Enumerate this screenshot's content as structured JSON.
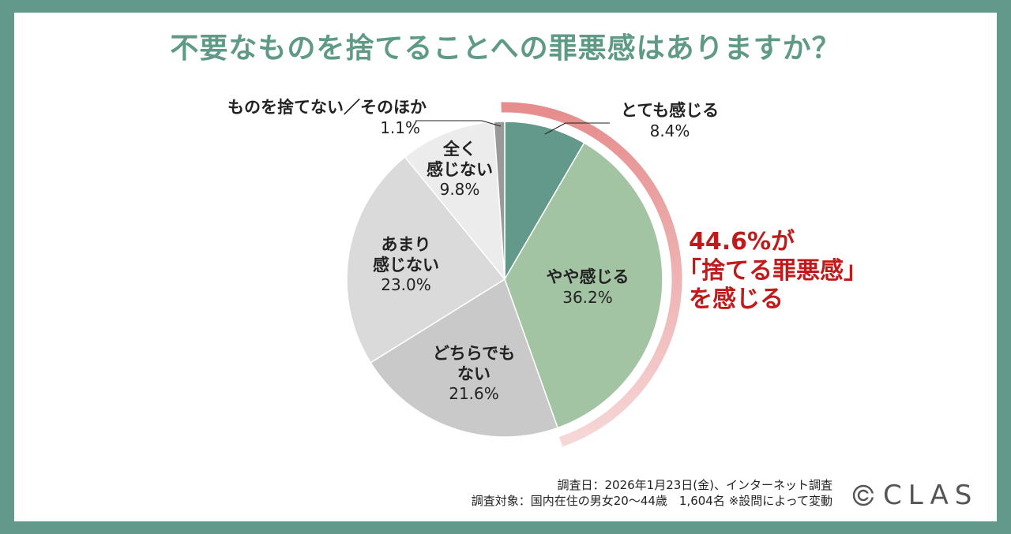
{
  "title": "不要なものを捨てることへの罪悪感はありますか？",
  "chart_data": {
    "type": "pie",
    "title": "不要なものを捨てることへの罪悪感はありますか？",
    "slices": [
      {
        "label": "とても感じる",
        "value": 8.4,
        "pct": "8.4%",
        "color": "#62998a"
      },
      {
        "label": "やや感じる",
        "value": 36.2,
        "pct": "36.2%",
        "color": "#a3c4a3"
      },
      {
        "label": "どちらでもない",
        "value": 21.6,
        "pct": "21.6%",
        "color": "#c9c9c9"
      },
      {
        "label": "あまり感じない",
        "value": 23.0,
        "pct": "23.0%",
        "color": "#dadada"
      },
      {
        "label": "全く感じない",
        "value": 9.8,
        "pct": "9.8%",
        "color": "#ececec"
      },
      {
        "label": "ものを捨てない／そのほか",
        "value": 1.1,
        "pct": "1.1%",
        "color": "#999999"
      }
    ],
    "highlight": {
      "total": 44.6,
      "covers": [
        "とても感じる",
        "やや感じる"
      ]
    }
  },
  "labels": {
    "s0": {
      "name": "とても感じる",
      "pct": "8.4%"
    },
    "s1": {
      "name": "やや感じる",
      "pct": "36.2%"
    },
    "s2": {
      "name_l1": "どちらでも",
      "name_l2": "ない",
      "pct": "21.6%"
    },
    "s3": {
      "name_l1": "あまり",
      "name_l2": "感じない",
      "pct": "23.0%"
    },
    "s4": {
      "name_l1": "全く",
      "name_l2": "感じない",
      "pct": "9.8%"
    },
    "s5": {
      "name": "ものを捨てない／そのほか",
      "pct": "1.1%"
    }
  },
  "callout": {
    "line1": "44.6%が",
    "line2": "「捨てる罪悪感」",
    "line3": "を感じる"
  },
  "notes": {
    "line1": "調査日：2026年1月23日(金)、インターネット調査",
    "line2": "調査対象：国内在住の男女20〜44歳　1,604名 ※設問によって変動"
  },
  "logo": {
    "text": "CLAS",
    "icon": "clas-logo-icon"
  },
  "colors": {
    "frame": "#62998a",
    "title": "#5f9a85",
    "callout": "#c21a1a",
    "arc": "#e68d8d"
  }
}
